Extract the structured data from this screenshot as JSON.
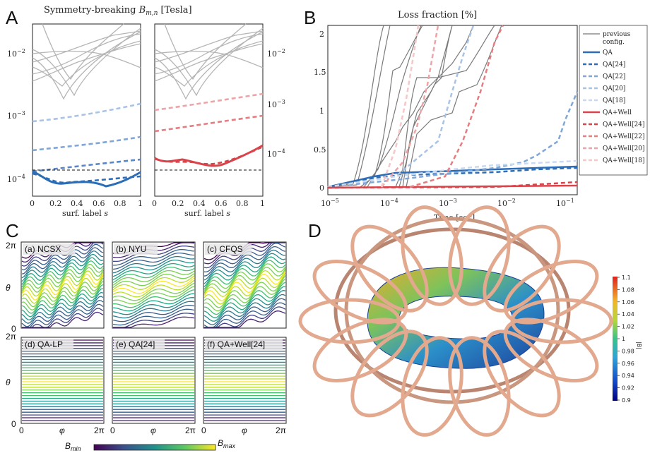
{
  "panel_labels": {
    "a": "A",
    "b": "B",
    "c": "C",
    "d": "D"
  },
  "panel_a": {
    "title": "Symmetry-breaking B_{m,n} [Tesla]",
    "title_main": "Symmetry-breaking ",
    "title_sym": "B",
    "title_subscript": "m,n",
    "title_unit": " [Tesla]",
    "xlabel": "surf. label s",
    "xlabel_main": "surf. label ",
    "xlabel_var": "s",
    "xticks": [
      "0",
      "0.2",
      "0.4",
      "0.6",
      "0.8",
      "1"
    ],
    "ytick_left": [
      {
        "base": "10",
        "exp": "−2"
      },
      {
        "base": "10",
        "exp": "−3"
      },
      {
        "base": "10",
        "exp": "−4"
      }
    ],
    "ytick_right": [
      {
        "base": "10",
        "exp": "−2"
      },
      {
        "base": "10",
        "exp": "−3"
      },
      {
        "base": "10",
        "exp": "−4"
      }
    ]
  },
  "panel_b": {
    "title": "Loss fraction [%]",
    "xlabel": "Time [sec]",
    "yticks": [
      "0",
      "0.5",
      "1",
      "1.5",
      "2"
    ],
    "xticks": [
      {
        "base": "10",
        "exp": "−5"
      },
      {
        "base": "10",
        "exp": "−4"
      },
      {
        "base": "10",
        "exp": "−3"
      },
      {
        "base": "10",
        "exp": "−2"
      },
      {
        "base": "10",
        "exp": "−1"
      }
    ],
    "legend": [
      {
        "label": "previous config.",
        "line1": "previous",
        "line2": "config.",
        "color": "#777777",
        "dash": "solid"
      },
      {
        "label": "QA",
        "color": "#2c6db6",
        "dash": "solid"
      },
      {
        "label": "QA[24]",
        "color": "#2c6db6",
        "dash": "dash"
      },
      {
        "label": "QA[22]",
        "color": "#7fa6d6",
        "dash": "dash"
      },
      {
        "label": "QA[20]",
        "color": "#a8c3e6",
        "dash": "dash"
      },
      {
        "label": "QA[18]",
        "color": "#c9daf0",
        "dash": "dash"
      },
      {
        "label": "QA+Well",
        "color": "#d9444a",
        "dash": "solid"
      },
      {
        "label": "QA+Well[24]",
        "color": "#d9444a",
        "dash": "dash"
      },
      {
        "label": "QA+Well[22]",
        "color": "#e47d80",
        "dash": "dash"
      },
      {
        "label": "QA+Well[20]",
        "color": "#eda4a6",
        "dash": "dash"
      },
      {
        "label": "QA+Well[18]",
        "color": "#f4c7c8",
        "dash": "dash"
      }
    ]
  },
  "panel_c": {
    "subplots": [
      {
        "label": "(a) NCSX"
      },
      {
        "label": "(b) NYU"
      },
      {
        "label": "(c) CFQS"
      },
      {
        "label": "(d) QA-LP"
      },
      {
        "label": "(e) QA[24]"
      },
      {
        "label": "(f) QA+Well[24]"
      }
    ],
    "ylabel": "θ",
    "xlabel": "φ",
    "tick_zero": "0",
    "tick_2pi": "2π",
    "colorbar_min": "B_min",
    "colorbar_max": "B_max",
    "cb_min_sym": "B",
    "cb_min_sub": "min",
    "cb_max_sym": "B",
    "cb_max_sub": "max"
  },
  "panel_d": {
    "colorbar_label": "|B|",
    "colorbar_ticks": [
      "1.1",
      "1.08",
      "1.06",
      "1.04",
      "1.02",
      "1",
      "0.98",
      "0.96",
      "0.94",
      "0.92",
      "0.9"
    ]
  }
}
